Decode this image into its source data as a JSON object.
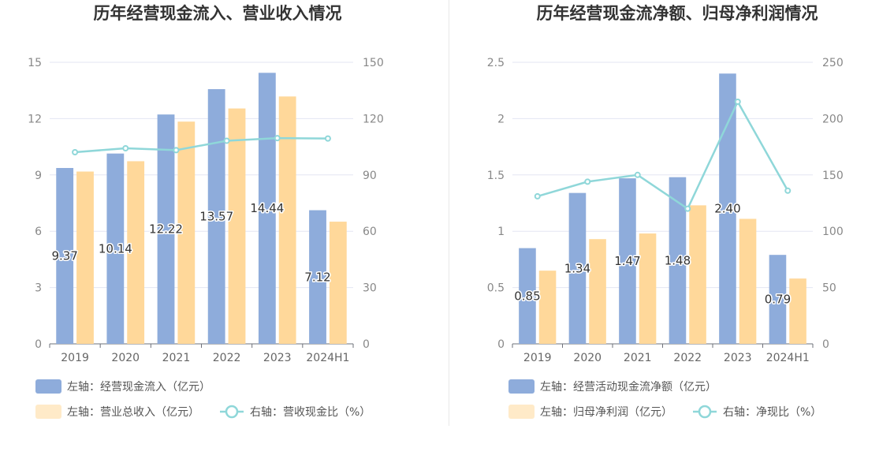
{
  "chart_data": [
    {
      "type": "bar",
      "title": "历年经营现金流入、营业收入情况",
      "categories": [
        "2019",
        "2020",
        "2021",
        "2022",
        "2023",
        "2024H1"
      ],
      "y_left": {
        "ticks": [
          "0",
          "3",
          "6",
          "9",
          "12",
          "15"
        ],
        "ylim": [
          0,
          15
        ]
      },
      "y_right": {
        "ticks": [
          "0",
          "30",
          "60",
          "90",
          "120",
          "150"
        ],
        "ylim": [
          0,
          150
        ]
      },
      "series": [
        {
          "name": "左轴：经营现金流入（亿元）",
          "type": "bar",
          "axis": "left",
          "color": "#8eacdb",
          "values": [
            9.37,
            10.14,
            12.22,
            13.57,
            14.44,
            7.12
          ],
          "labels": [
            "9.37",
            "10.14",
            "12.22",
            "13.57",
            "14.44",
            "7.12"
          ]
        },
        {
          "name": "左轴：营业总收入（亿元）",
          "type": "bar",
          "axis": "left",
          "color": "#ffd89a",
          "values": [
            9.18,
            9.73,
            11.84,
            12.54,
            13.18,
            6.51
          ]
        },
        {
          "name": "右轴：营收现金比（%）",
          "type": "line",
          "axis": "right",
          "color": "#8fd7d9",
          "values": [
            102.1,
            104.2,
            103.2,
            108.2,
            109.6,
            109.4
          ]
        }
      ],
      "grid": true,
      "legend_position": "bottom"
    },
    {
      "type": "bar",
      "title": "历年经营现金流净额、归母净利润情况",
      "categories": [
        "2019",
        "2020",
        "2021",
        "2022",
        "2023",
        "2024H1"
      ],
      "y_left": {
        "ticks": [
          "0",
          "0.5",
          "1",
          "1.5",
          "2",
          "2.5"
        ],
        "ylim": [
          0,
          2.5
        ]
      },
      "y_right": {
        "ticks": [
          "0",
          "50",
          "100",
          "150",
          "200",
          "250"
        ],
        "ylim": [
          0,
          250
        ]
      },
      "series": [
        {
          "name": "左轴：经营活动现金流净额（亿元）",
          "type": "bar",
          "axis": "left",
          "color": "#8eacdb",
          "values": [
            0.85,
            1.34,
            1.47,
            1.48,
            2.4,
            0.79
          ],
          "labels": [
            "0.85",
            "1.34",
            "1.47",
            "1.48",
            "2.40",
            "0.79"
          ]
        },
        {
          "name": "左轴：归母净利润（亿元）",
          "type": "bar",
          "axis": "left",
          "color": "#ffd89a",
          "values": [
            0.65,
            0.93,
            0.98,
            1.23,
            1.11,
            0.58
          ]
        },
        {
          "name": "右轴：净现比（%）",
          "type": "line",
          "axis": "right",
          "color": "#8fd7d9",
          "values": [
            131,
            144,
            150,
            120,
            215,
            136
          ]
        }
      ],
      "grid": true,
      "legend_position": "bottom"
    }
  ]
}
